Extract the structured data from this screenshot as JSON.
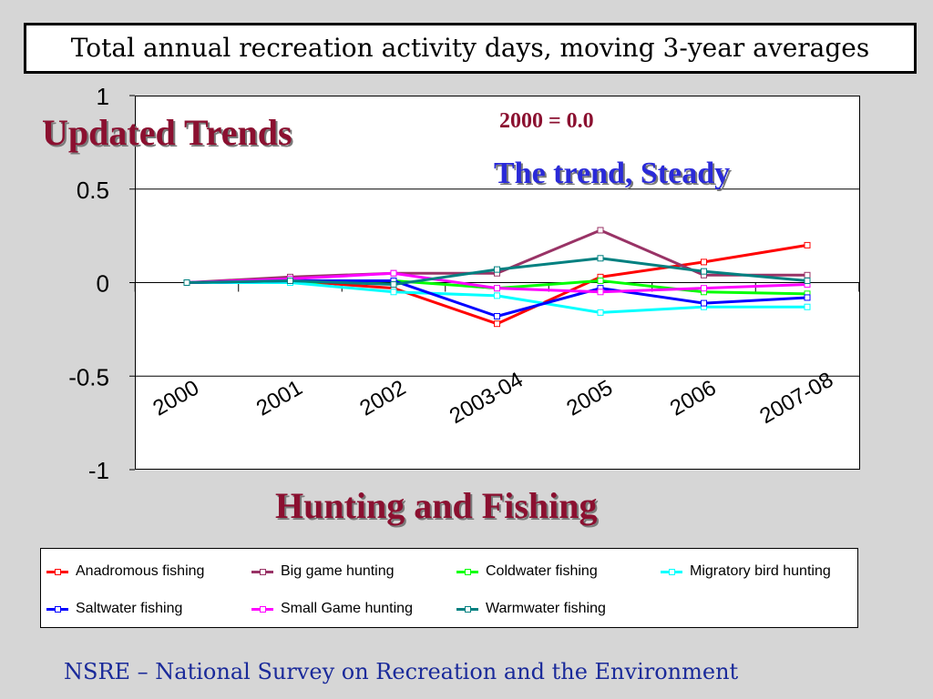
{
  "slide": {
    "title": "Total annual recreation activity days, moving 3-year averages",
    "heading": "Updated Trends",
    "baseline_note": "2000 = 0.0",
    "trend_note": "The trend, Steady",
    "subtitle": "Hunting and Fishing",
    "footer": "NSRE – National Survey on Recreation and the Environment"
  },
  "chart_data": {
    "type": "line",
    "title": "Total annual recreation activity days, moving 3-year averages",
    "xlabel": "",
    "ylabel": "",
    "categories": [
      "2000",
      "2001",
      "2002",
      "2003-04",
      "2005",
      "2006",
      "2007-08"
    ],
    "ylim": [
      -1,
      1
    ],
    "yticks": [
      1,
      0.5,
      0,
      -0.5,
      -1
    ],
    "ytick_labels": [
      "1",
      "0.5",
      "0",
      "-0.5",
      "-1"
    ],
    "grid": true,
    "legend_position": "bottom",
    "series": [
      {
        "name": "Anadromous fishing",
        "color": "#ff0000",
        "values": [
          0,
          0.01,
          -0.03,
          -0.22,
          0.03,
          0.11,
          0.2
        ]
      },
      {
        "name": "Big game hunting",
        "color": "#993366",
        "values": [
          0,
          0.03,
          0.05,
          0.05,
          0.28,
          0.04,
          0.04
        ]
      },
      {
        "name": "Coldwater fishing",
        "color": "#00ff00",
        "values": [
          0,
          0.0,
          0.01,
          -0.03,
          0.01,
          -0.05,
          -0.06
        ]
      },
      {
        "name": "Migratory bird hunting",
        "color": "#00ffff",
        "values": [
          0,
          0.0,
          -0.05,
          -0.07,
          -0.16,
          -0.13,
          -0.13
        ]
      },
      {
        "name": "Saltwater fishing",
        "color": "#0000ff",
        "values": [
          0,
          0.01,
          0.01,
          -0.18,
          -0.03,
          -0.11,
          -0.08
        ]
      },
      {
        "name": "Small Game hunting",
        "color": "#ff00ff",
        "values": [
          0,
          0.02,
          0.05,
          -0.03,
          -0.05,
          -0.03,
          -0.01
        ]
      },
      {
        "name": "Warmwater fishing",
        "color": "#008080",
        "values": [
          0,
          0.01,
          -0.01,
          0.07,
          0.13,
          0.06,
          0.01
        ]
      }
    ]
  }
}
